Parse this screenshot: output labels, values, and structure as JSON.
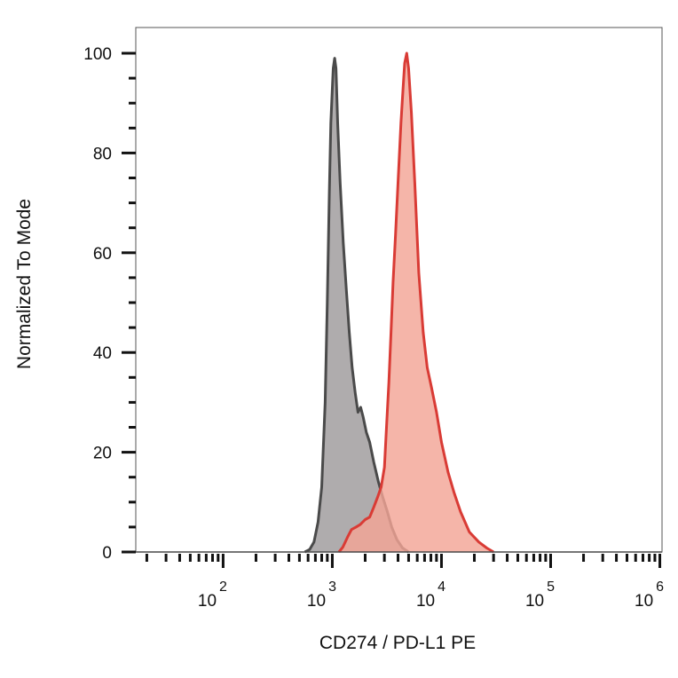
{
  "chart_data": {
    "type": "area",
    "xlabel": "CD274 / PD-L1 PE",
    "ylabel": "Normalized To Mode",
    "x_scale": "log",
    "x_tick_labels": [
      {
        "base": "10",
        "exp": "2",
        "value": 100
      },
      {
        "base": "10",
        "exp": "3",
        "value": 1000
      },
      {
        "base": "10",
        "exp": "4",
        "value": 10000
      },
      {
        "base": "10",
        "exp": "5",
        "value": 100000
      },
      {
        "base": "10",
        "exp": "6",
        "value": 1000000
      }
    ],
    "y_ticks": [
      0,
      20,
      40,
      60,
      80,
      100
    ],
    "ylim": [
      0,
      100
    ],
    "grid": false,
    "legend": "none",
    "series": [
      {
        "color": "#4a4a4a",
        "fill": "#9e9a9b",
        "points": [
          [
            560,
            0
          ],
          [
            620,
            0.5
          ],
          [
            680,
            2
          ],
          [
            740,
            6
          ],
          [
            800,
            13
          ],
          [
            860,
            30
          ],
          [
            900,
            50
          ],
          [
            940,
            72
          ],
          [
            970,
            86
          ],
          [
            1000,
            93
          ],
          [
            1020,
            97
          ],
          [
            1050,
            99
          ],
          [
            1080,
            97
          ],
          [
            1120,
            86
          ],
          [
            1180,
            74
          ],
          [
            1260,
            62
          ],
          [
            1350,
            52
          ],
          [
            1430,
            44
          ],
          [
            1520,
            37
          ],
          [
            1620,
            32
          ],
          [
            1720,
            28
          ],
          [
            1820,
            29
          ],
          [
            1920,
            27
          ],
          [
            2050,
            24
          ],
          [
            2200,
            22
          ],
          [
            2400,
            18
          ],
          [
            2650,
            14
          ],
          [
            2900,
            11
          ],
          [
            3200,
            8
          ],
          [
            3500,
            5
          ],
          [
            3900,
            2.5
          ],
          [
            4400,
            0.8
          ],
          [
            5000,
            0
          ]
        ]
      },
      {
        "color": "#d93b35",
        "fill": "#f3a596",
        "points": [
          [
            1150,
            0
          ],
          [
            1250,
            1
          ],
          [
            1380,
            3
          ],
          [
            1500,
            4.5
          ],
          [
            1650,
            5
          ],
          [
            1800,
            5.5
          ],
          [
            2000,
            6.5
          ],
          [
            2200,
            7
          ],
          [
            2400,
            9
          ],
          [
            2600,
            11
          ],
          [
            2800,
            13
          ],
          [
            3000,
            17
          ],
          [
            3150,
            26
          ],
          [
            3300,
            34
          ],
          [
            3450,
            44
          ],
          [
            3600,
            54
          ],
          [
            3800,
            64
          ],
          [
            4000,
            74
          ],
          [
            4250,
            86
          ],
          [
            4450,
            93
          ],
          [
            4600,
            98
          ],
          [
            4800,
            100
          ],
          [
            5000,
            97
          ],
          [
            5300,
            88
          ],
          [
            5700,
            74
          ],
          [
            6200,
            56
          ],
          [
            6800,
            44
          ],
          [
            7400,
            37
          ],
          [
            8100,
            33
          ],
          [
            9000,
            28
          ],
          [
            10000,
            22
          ],
          [
            11500,
            16
          ],
          [
            13000,
            12
          ],
          [
            15000,
            8
          ],
          [
            18000,
            4
          ],
          [
            22000,
            2
          ],
          [
            26000,
            0.8
          ],
          [
            30000,
            0
          ]
        ]
      }
    ]
  }
}
